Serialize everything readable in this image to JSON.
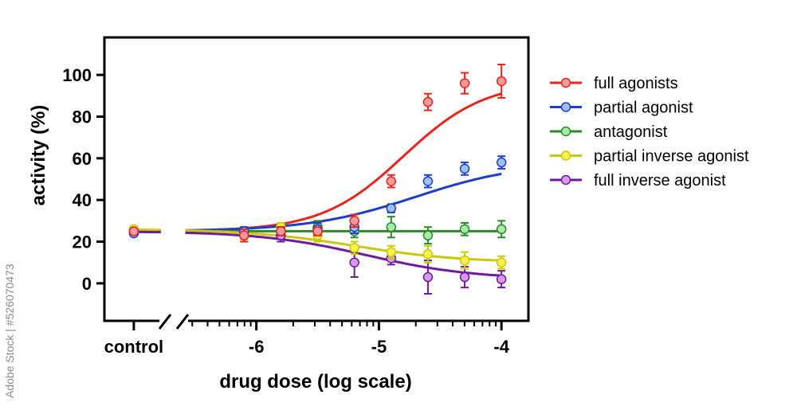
{
  "watermark": "Adobe Stock | #526070473",
  "chart_data": {
    "type": "line",
    "title": "",
    "xlabel": "drug dose (log scale)",
    "ylabel": "activity (%)",
    "x_scale": "log",
    "x_axis_break": true,
    "xlim": [
      -6.9,
      -3.8
    ],
    "ylim": [
      -18,
      118
    ],
    "x_ticks": [
      {
        "x": -7,
        "label": "control"
      },
      {
        "x": -6,
        "label": "-6"
      },
      {
        "x": -5,
        "label": "-5"
      },
      {
        "x": -4,
        "label": "-4"
      }
    ],
    "y_ticks": [
      0,
      20,
      40,
      60,
      80,
      100
    ],
    "grid": false,
    "legend_position": "right",
    "series": [
      {
        "name": "full agonists",
        "color": "#e8241f",
        "marker_fill": "#f49a9a",
        "x": [
          -7,
          -6.1,
          -5.8,
          -5.5,
          -5.2,
          -4.9,
          -4.6,
          -4.3,
          -4.0
        ],
        "y": [
          25,
          23,
          25,
          25,
          30,
          49,
          87,
          96,
          97
        ],
        "err": [
          1,
          3,
          2,
          2,
          3,
          3,
          4,
          5,
          8
        ]
      },
      {
        "name": "partial agonist",
        "color": "#1d3cc8",
        "marker_fill": "#9cc0f0",
        "x": [
          -7,
          -6.1,
          -5.8,
          -5.5,
          -5.2,
          -4.9,
          -4.6,
          -4.3,
          -4.0
        ],
        "y": [
          24,
          25,
          25,
          26,
          27,
          36,
          49,
          55,
          58
        ],
        "err": [
          1,
          2,
          2,
          3,
          3,
          2,
          3,
          3,
          3
        ]
      },
      {
        "name": "antagonist",
        "color": "#2a8a2a",
        "marker_fill": "#a8eaa8",
        "x": [
          -7,
          -6.1,
          -5.8,
          -5.5,
          -5.2,
          -4.9,
          -4.6,
          -4.3,
          -4.0
        ],
        "y": [
          25,
          25,
          25,
          27,
          25,
          27,
          23,
          26,
          26
        ],
        "err": [
          1,
          2,
          2,
          3,
          3,
          5,
          4,
          3,
          4
        ]
      },
      {
        "name": "partial inverse agonist",
        "color": "#c9c90a",
        "marker_fill": "#f5f04a",
        "x": [
          -7,
          -6.1,
          -5.8,
          -5.5,
          -5.2,
          -4.9,
          -4.6,
          -4.3,
          -4.0
        ],
        "y": [
          26,
          23,
          27,
          23,
          17,
          15,
          14,
          11,
          10
        ],
        "err": [
          1,
          2,
          2,
          3,
          3,
          3,
          4,
          4,
          3
        ]
      },
      {
        "name": "full inverse agonist",
        "color": "#6f1a9e",
        "marker_fill": "#d79ae8",
        "x": [
          -7,
          -6.1,
          -5.8,
          -5.5,
          -5.2,
          -4.9,
          -4.6,
          -4.3,
          -4.0
        ],
        "y": [
          25,
          23,
          23,
          25,
          10,
          12,
          3,
          3,
          2
        ],
        "err": [
          1,
          3,
          3,
          3,
          7,
          3,
          8,
          5,
          4
        ]
      }
    ],
    "curves": [
      {
        "series": "full agonists",
        "bottom": 25,
        "top": 97,
        "ec50": -4.8,
        "hill": 1.3
      },
      {
        "series": "partial agonist",
        "bottom": 25,
        "top": 58,
        "ec50": -4.7,
        "hill": 1.0
      },
      {
        "series": "antagonist",
        "bottom": 25,
        "top": 25,
        "ec50": -5.0,
        "hill": 1.0
      },
      {
        "series": "partial inverse agonist",
        "bottom": 26,
        "top": 10,
        "ec50": -5.2,
        "hill": 1.0
      },
      {
        "series": "full inverse agonist",
        "bottom": 25,
        "top": 2,
        "ec50": -5.1,
        "hill": 1.0
      }
    ]
  }
}
